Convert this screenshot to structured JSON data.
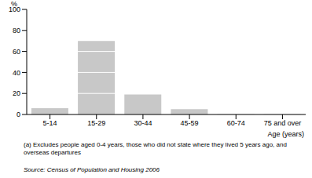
{
  "chart_data": {
    "type": "bar",
    "y_label": "%",
    "x_label": "Age (years)",
    "categories": [
      "5-14",
      "15-29",
      "30-44",
      "45-59",
      "60-74",
      "75 and over"
    ],
    "values": [
      6,
      70,
      19,
      5,
      0.2,
      0.1
    ],
    "color": "#c8c8c8",
    "ylim": [
      0,
      100
    ],
    "yticks": [
      0,
      20,
      40,
      60,
      80,
      100
    ],
    "grid": true,
    "annotations": [
      "(a) Excludes people aged 0-4 years, those who did not state where they lived 5 years ago, and overseas departures",
      "Source: Census of Population and Housing 2006"
    ]
  }
}
